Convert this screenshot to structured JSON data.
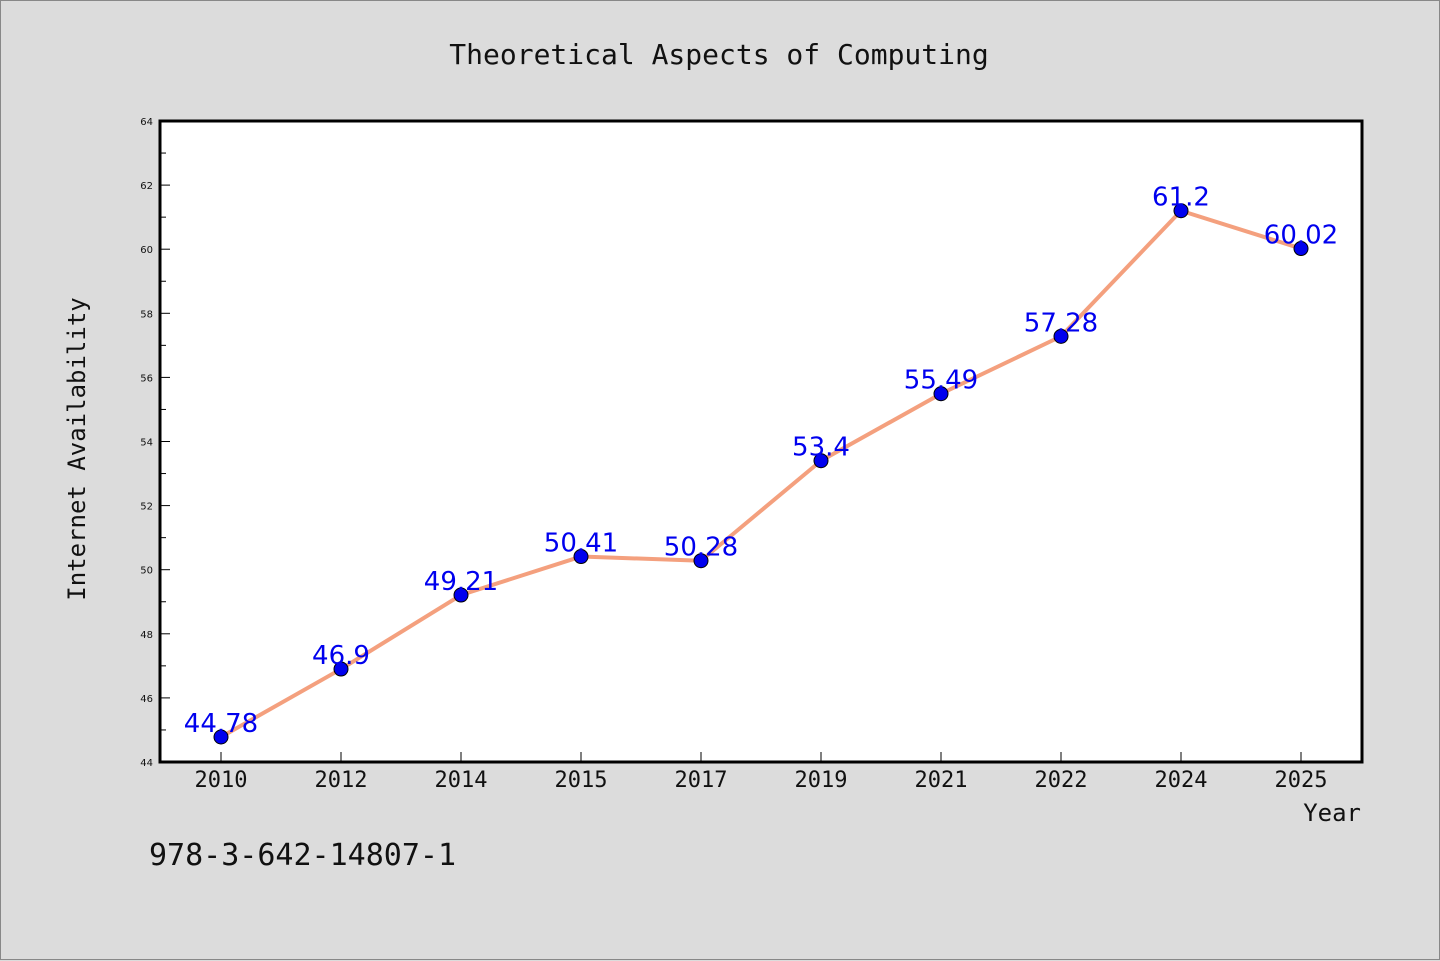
{
  "page": {
    "background_color": "#dcdcdc"
  },
  "chart_data": {
    "type": "line",
    "title": "Theoretical Aspects of Computing",
    "xlabel": "Year",
    "ylabel": "Internet Availability",
    "categories": [
      "2010",
      "2012",
      "2014",
      "2015",
      "2017",
      "2019",
      "2021",
      "2022",
      "2024",
      "2025"
    ],
    "series": [
      {
        "values": [
          44.78,
          46.9,
          49.21,
          50.41,
          50.28,
          53.4,
          55.49,
          57.28,
          61.2,
          60.02
        ],
        "data_labels": [
          "44.78",
          "46.9",
          "49.21",
          "50.41",
          "50.28",
          "53.4",
          "55.49",
          "57.28",
          "61.2",
          "60.02"
        ],
        "line_color": "#f4a07e",
        "marker_color": "#0000ee",
        "label_color": "#0000ee"
      }
    ],
    "ylim": [
      44,
      64
    ],
    "yticks": [
      "44",
      "46",
      "48",
      "50",
      "52",
      "54",
      "56",
      "58",
      "60",
      "62",
      "64"
    ],
    "grid": false,
    "legend": "none",
    "plot_background": "#ffffff"
  },
  "footer": {
    "isbn": "978-3-642-14807-1"
  }
}
